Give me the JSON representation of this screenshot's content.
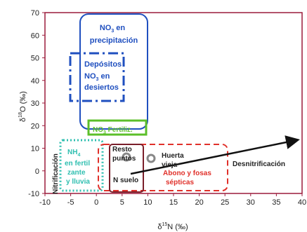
{
  "chart_data": {
    "type": "scatter",
    "xlabel": "δ15N (‰)",
    "ylabel": "δ18O (‰)",
    "xlim": [
      -10,
      40
    ],
    "ylim": [
      -10,
      70
    ],
    "xticks": [
      "-10",
      "-5",
      "0",
      "5",
      "10",
      "15",
      "20",
      "25",
      "30",
      "35",
      "40"
    ],
    "yticks": [
      "-10",
      "0",
      "10",
      "20",
      "30",
      "40",
      "50",
      "60",
      "70"
    ],
    "grid": false,
    "legend": "none",
    "regions": [
      {
        "label": "NO3 en precipitación",
        "x": [
          -3,
          9
        ],
        "y": [
          18,
          68
        ],
        "color": "#1f4fbf",
        "style": "solid"
      },
      {
        "label": "Depósitos NO3 en desiertos",
        "x": [
          -2.5,
          6.5
        ],
        "y": [
          30,
          45
        ],
        "color": "#1f4fbf",
        "style": "dashdot"
      },
      {
        "label": "NO3 Fertiliz.",
        "x": [
          -2,
          8
        ],
        "y": [
          18,
          23.5
        ],
        "color": "#5cbf2a",
        "style": "solid"
      },
      {
        "label": "NH4 en fertilizante y lluvia",
        "x": [
          -6.5,
          0.5
        ],
        "y": [
          -5,
          13
        ],
        "color": "#2fbfb0",
        "style": "dotted"
      },
      {
        "label": "Resto puntos",
        "x": [
          2.5,
          8.5
        ],
        "y": [
          -5,
          13
        ],
        "color": "#7a1f2a",
        "style": "solid"
      },
      {
        "label": "Abono y fosas sépticas",
        "x": [
          0.5,
          25
        ],
        "y": [
          -5,
          13
        ],
        "color": "#e0302a",
        "style": "dashed"
      }
    ],
    "points": [
      {
        "label": "Resto puntos",
        "x": 5.5,
        "y": 9
      },
      {
        "label": "Huerta vieja",
        "x": 10,
        "y": 9
      }
    ],
    "annotations": [
      {
        "text": "NO3 en precipitación",
        "color": "#1f4fbf"
      },
      {
        "text": "Depósitos NO3 en desiertos",
        "color": "#1f4fbf"
      },
      {
        "text": "NO3 Fertiliz.",
        "color": "#5cbf2a"
      },
      {
        "text": "NH4 en fertilizante y lluvia",
        "color": "#2fbfb0"
      },
      {
        "text": "Resto puntos",
        "color": "#222222"
      },
      {
        "text": "Huerta vieja",
        "color": "#222222"
      },
      {
        "text": "N suelo",
        "color": "#222222"
      },
      {
        "text": "Abono y fosas sépticas",
        "color": "#e0302a"
      },
      {
        "text": "Desnitrificación",
        "color": "#222222"
      },
      {
        "text": "Nitrificación",
        "color": "#222222"
      }
    ],
    "arrow": {
      "label": "Desnitrificación",
      "from": [
        7,
        2
      ],
      "to": [
        40,
        13
      ]
    }
  },
  "axis_colors": {
    "frame": "#9b1b3b",
    "text": "#222222"
  }
}
